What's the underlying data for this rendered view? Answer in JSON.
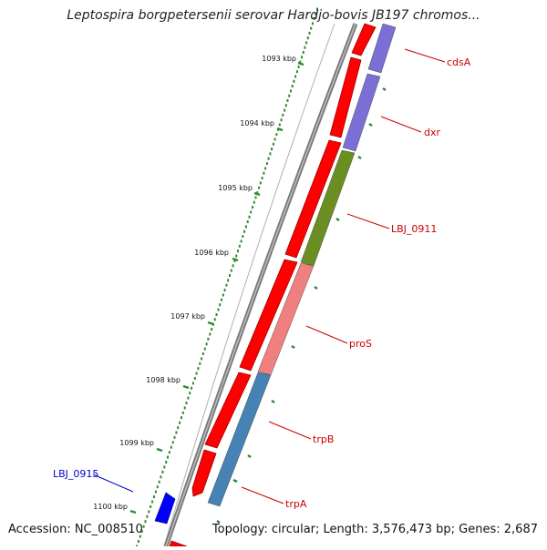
{
  "title": "Leptospira borgpetersenii serovar Hardjo-bovis JB197 chromos...",
  "footer": {
    "accession": "Accession: NC_008510",
    "summary": "Topology: circular; Length: 3,576,473 bp; Genes: 2,687"
  },
  "scale_ticks": [
    "1093 kbp",
    "1094 kbp",
    "1095 kbp",
    "1096 kbp",
    "1097 kbp",
    "1098 kbp",
    "1099 kbp",
    "1100 kbp"
  ],
  "genes": [
    {
      "name": "cdsA",
      "color": "#7b6fd6"
    },
    {
      "name": "dxr",
      "color": "#7b6fd6"
    },
    {
      "name": "LBJ_0911",
      "color": "#6b8e23"
    },
    {
      "name": "proS",
      "color": "#f08080"
    },
    {
      "name": "trpB",
      "color": "#4682b4"
    },
    {
      "name": "trpA",
      "color": "#4682b4"
    },
    {
      "name": "LBJ_0915",
      "color": "#0000ff"
    }
  ],
  "colors": {
    "cds_strand": "#ff0000",
    "label_red": "#cc0000",
    "label_blue": "#0000cc",
    "tick_green": "#2e8b2e",
    "backbone": "#808080"
  }
}
